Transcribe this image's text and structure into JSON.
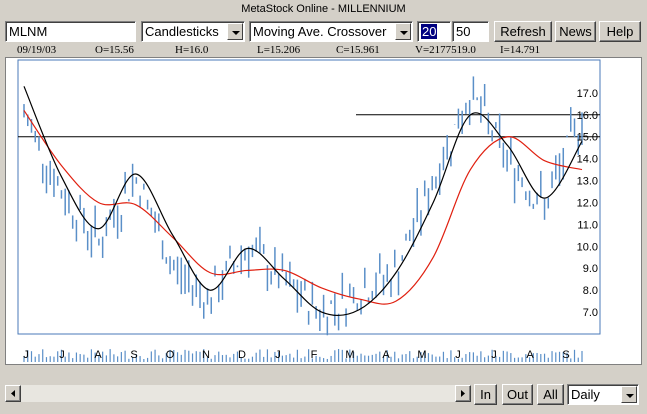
{
  "window": {
    "title": "MetaStock Online - MILLENNIUM"
  },
  "toolbar": {
    "symbol": "MLNM",
    "chart_style": "Candlesticks",
    "system": "Moving Ave. Crossover",
    "param1": "20",
    "param2": "50",
    "refresh_label": "Refresh",
    "news_label": "News",
    "help_label": "Help"
  },
  "info": {
    "date": "09/19/03",
    "open": "O=15.56",
    "high": "H=16.0",
    "low": "L=15.206",
    "close": "C=15.961",
    "volume": "V=2177519.0",
    "indicator": "I=14.791"
  },
  "bottom": {
    "in_label": "In",
    "out_label": "Out",
    "all_label": "All",
    "period": "Daily"
  },
  "colors": {
    "price": "#5a8fc8",
    "fast_ma": "#000000",
    "slow_ma": "#e02010",
    "volume": "#5a8fc8"
  },
  "chart_data": {
    "type": "candlestick",
    "ylim": [
      6.0,
      18.5
    ],
    "y_ticks": [
      "17.0",
      "16.0",
      "15.0",
      "14.0",
      "13.0",
      "12.0",
      "11.0",
      "10.0",
      "9.0",
      "8.0",
      "7.0"
    ],
    "x_ticks": [
      "J",
      "J",
      "A",
      "S",
      "O",
      "N",
      "D",
      "J",
      "F",
      "M",
      "A",
      "M",
      "J",
      "J",
      "A",
      "S"
    ],
    "x": [
      0,
      1,
      2,
      3,
      4,
      5,
      6,
      7,
      8,
      9,
      10,
      11,
      12,
      13,
      14,
      15
    ],
    "close": [
      16.0,
      12.5,
      10.2,
      13.2,
      9.0,
      7.6,
      10.0,
      8.3,
      7.0,
      8.0,
      8.8,
      13.0,
      17.0,
      14.0,
      11.8,
      15.96
    ],
    "ma_fast": [
      17.3,
      13.2,
      10.8,
      13.3,
      10.5,
      8.0,
      9.9,
      8.5,
      7.0,
      7.1,
      8.8,
      12.0,
      16.0,
      14.6,
      12.2,
      14.79
    ],
    "ma_slow": [
      16.2,
      13.7,
      12.0,
      11.9,
      10.4,
      8.8,
      8.9,
      8.9,
      8.1,
      7.6,
      7.5,
      9.5,
      13.5,
      15.0,
      13.9,
      13.5
    ],
    "hlines": [
      15.0,
      16.0
    ]
  }
}
